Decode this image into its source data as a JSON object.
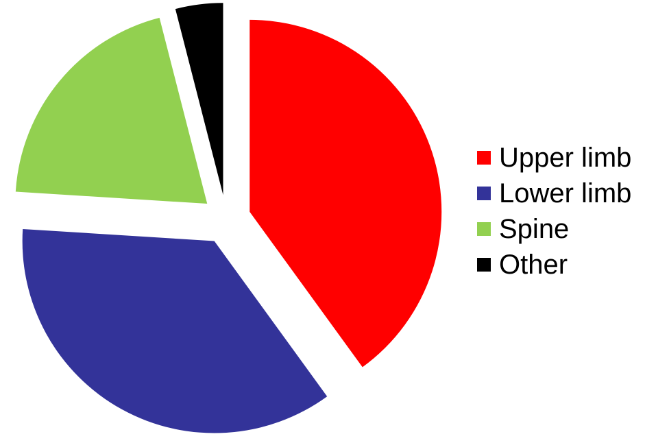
{
  "chart_data": {
    "type": "pie",
    "title": "",
    "slices": [
      {
        "label": "Upper limb",
        "value": 40,
        "color": "#FF0000"
      },
      {
        "label": "Lower limb",
        "value": 36,
        "color": "#333399"
      },
      {
        "label": "Spine",
        "value": 20,
        "color": "#92D050"
      },
      {
        "label": "Other",
        "value": 4,
        "color": "#000000"
      }
    ],
    "start_angle": "12 o'clock, clockwise",
    "exploded": true,
    "legend_position": "right"
  }
}
